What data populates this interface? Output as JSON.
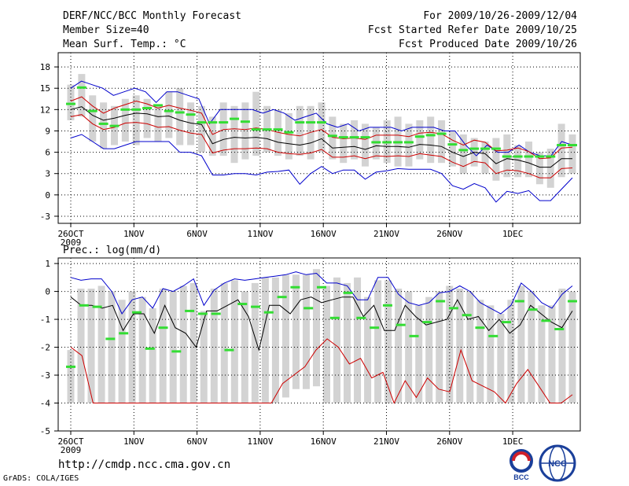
{
  "header": {
    "line1": "DERF/NCC/BCC Monthly Forecast",
    "line2": "Member Size=40",
    "line3": "Mean Surf. Temp.: °C",
    "right1": "For 2009/10/26-2009/12/04",
    "right2": "Fcst Started Refer Date 2009/10/25",
    "right3": "Fcst Produced Date 2009/10/26"
  },
  "footer": {
    "url": "http://cmdp.ncc.cma.gov.cn",
    "grads": "GrADS: COLA/IGES",
    "bcc_logo": "BCC",
    "ncc_logo": "NCC"
  },
  "colors": {
    "grid": "#000000",
    "box": "#d3d3d3",
    "mean": "#000000",
    "inner": "#cc0000",
    "outer": "#0000cc",
    "marker": "#33dd33"
  },
  "chart_data": [
    {
      "type": "line",
      "title": "Mean Surf. Temp.: °C",
      "ylim": [
        -4,
        20
      ],
      "yticks": [
        -3,
        0,
        3,
        6,
        9,
        12,
        15,
        18
      ],
      "xtick_labels": [
        "26OCT",
        "1NOV",
        "6NOV",
        "11NOV",
        "16NOV",
        "21NOV",
        "26NOV",
        "1DEC"
      ],
      "xtick_sub": [
        "2009",
        "",
        "",
        "",
        "",
        "",
        "",
        ""
      ],
      "days": 40,
      "series": [
        {
          "name": "outer_max",
          "values": [
            15,
            16,
            15.5,
            15,
            14,
            14.5,
            15,
            14.5,
            13,
            14.5,
            14.5,
            14,
            13.5,
            10,
            12,
            12,
            12,
            12,
            11.5,
            12,
            11.5,
            10.5,
            11,
            11.5,
            10,
            9.5,
            10,
            9,
            9.5,
            9.5,
            9.5,
            9,
            9.5,
            9.5,
            9.5,
            9,
            9,
            7,
            5.5,
            7,
            6,
            6,
            7,
            6,
            5.5,
            5.5,
            7.5,
            7
          ]
        },
        {
          "name": "inner_max",
          "values": [
            13.2,
            13.8,
            12.5,
            11.5,
            12.2,
            12.7,
            13.2,
            12.8,
            12.2,
            12.6,
            12.2,
            11.9,
            11.5,
            8.5,
            9.2,
            9.3,
            9.2,
            9.4,
            9.2,
            8.8,
            8.5,
            8.3,
            8.8,
            9.2,
            8.1,
            7.9,
            8.0,
            7.8,
            8.4,
            8.4,
            8.4,
            8.2,
            8.7,
            8.8,
            8.6,
            7.7,
            7.0,
            7.7,
            7.4,
            6.2,
            6.3,
            6.6,
            6.1,
            5.1,
            5.2,
            6.6,
            6.7
          ]
        },
        {
          "name": "mean",
          "values": [
            12.0,
            12.4,
            11.2,
            10.5,
            10.8,
            11.2,
            11.5,
            11.4,
            11.0,
            11.1,
            10.5,
            10.1,
            9.9,
            7.2,
            7.8,
            8.1,
            8.0,
            8.1,
            7.9,
            7.4,
            7.2,
            7.0,
            7.3,
            7.9,
            6.6,
            6.7,
            6.8,
            6.4,
            6.9,
            6.8,
            6.8,
            6.7,
            7.1,
            7.0,
            6.8,
            6.0,
            5.4,
            6.0,
            5.8,
            4.4,
            5.1,
            4.9,
            4.5,
            3.9,
            3.9,
            5.1,
            5.1
          ]
        },
        {
          "name": "inner_min",
          "values": [
            11.0,
            11.3,
            10.0,
            9.2,
            9.5,
            10.1,
            10.2,
            10.0,
            9.5,
            9.6,
            9.1,
            8.7,
            8.5,
            5.9,
            6.3,
            6.5,
            6.5,
            6.6,
            6.5,
            6.0,
            5.8,
            5.7,
            5.9,
            6.4,
            5.3,
            5.3,
            5.5,
            5.1,
            5.5,
            5.4,
            5.5,
            5.4,
            5.8,
            5.6,
            5.4,
            4.6,
            4.0,
            4.7,
            4.5,
            3.0,
            3.5,
            3.4,
            3.0,
            2.4,
            2.4,
            3.7,
            3.8
          ]
        },
        {
          "name": "outer_min",
          "values": [
            8.0,
            8.5,
            7.5,
            6.5,
            6.5,
            7.0,
            7.5,
            7.5,
            7.5,
            7.5,
            6.0,
            6.0,
            5.5,
            2.8,
            2.8,
            3.0,
            3.0,
            2.8,
            3.2,
            3.3,
            3.5,
            1.5,
            3.0,
            4.0,
            3.0,
            3.5,
            3.5,
            2.2,
            3.2,
            3.4,
            3.7,
            3.6,
            3.6,
            3.6,
            3.0,
            1.3,
            0.8,
            1.6,
            1.0,
            -1.0,
            0.5,
            0.2,
            0.6,
            -0.8,
            -0.8,
            0.8,
            2.4
          ]
        },
        {
          "name": "box_top",
          "values": [
            15.5,
            17,
            14,
            13,
            12.5,
            13.5,
            14,
            13.5,
            12.5,
            14.5,
            15,
            13,
            12.5,
            11,
            13,
            12.5,
            13,
            14.5,
            12.5,
            12,
            11.5,
            12.5,
            12.5,
            13,
            11,
            10,
            10.5,
            10,
            9.5,
            10.5,
            11,
            10,
            10.5,
            11,
            10.5,
            9,
            8.5,
            8,
            7.5,
            8,
            8.5,
            7,
            7.5,
            6,
            6.5,
            10,
            8.5
          ]
        },
        {
          "name": "box_bottom",
          "values": [
            10.5,
            11,
            7.5,
            6.5,
            7,
            7.5,
            7,
            8,
            7.5,
            8,
            7,
            7,
            6,
            5.5,
            5.5,
            4.5,
            5,
            5.5,
            6,
            5.5,
            5,
            5.5,
            5,
            6,
            5,
            4.5,
            5,
            4,
            5,
            4.5,
            4,
            4,
            5,
            4.5,
            4.5,
            4,
            3,
            4,
            3,
            2,
            2.5,
            2.5,
            2.5,
            1.5,
            1,
            2.5,
            3
          ]
        },
        {
          "name": "markers",
          "values": [
            12.8,
            15.1,
            11.8,
            10,
            9.7,
            12,
            12,
            12.2,
            12.6,
            11.8,
            11.6,
            11.3,
            10.2,
            10.2,
            10.2,
            10.7,
            10.3,
            9.2,
            9.2,
            9.2,
            8.8,
            10.2,
            10.2,
            10.2,
            8.3,
            8.1,
            8.1,
            8.1,
            7.4,
            7.4,
            7.4,
            7.4,
            8.2,
            8.4,
            8.6,
            7.1,
            6.3,
            6.5,
            6.5,
            6.5,
            5.4,
            5.4,
            5.4,
            5.4,
            5.4,
            7.0,
            7.0
          ]
        }
      ]
    },
    {
      "type": "line",
      "title": "Prec.: log(mm/d)",
      "ylim": [
        -5,
        1.2
      ],
      "yticks": [
        -5,
        -4,
        -3,
        -2,
        -1,
        0,
        1
      ],
      "xtick_labels": [
        "26OCT",
        "1NOV",
        "6NOV",
        "11NOV",
        "16NOV",
        "21NOV",
        "26NOV",
        "1DEC"
      ],
      "xtick_sub": [
        "2009",
        "",
        "",
        "",
        "",
        "",
        "",
        ""
      ],
      "days": 40,
      "series": [
        {
          "name": "outer_max",
          "values": [
            0.5,
            0.4,
            0.45,
            0.45,
            0.0,
            -0.8,
            -0.3,
            -0.2,
            -0.6,
            0.1,
            0.0,
            0.2,
            0.45,
            -0.5,
            0.05,
            0.3,
            0.45,
            0.4,
            0.45,
            0.5,
            0.55,
            0.6,
            0.7,
            0.6,
            0.65,
            0.3,
            0.3,
            0.2,
            -0.3,
            -0.3,
            0.5,
            0.5,
            -0.1,
            -0.4,
            -0.5,
            -0.4,
            -0.05,
            0.0,
            0.2,
            0.0,
            -0.4,
            -0.6,
            -0.8,
            -0.5,
            0.3,
            0.0,
            -0.4,
            -0.6,
            -0.1,
            0.2
          ]
        },
        {
          "name": "mean",
          "values": [
            -0.2,
            -0.5,
            -0.5,
            -0.6,
            -0.5,
            -1.4,
            -0.8,
            -0.8,
            -1.5,
            -0.5,
            -1.3,
            -1.5,
            -2.0,
            -0.7,
            -0.7,
            -0.5,
            -0.3,
            -0.9,
            -2.1,
            -0.5,
            -0.5,
            -0.8,
            -0.3,
            -0.2,
            -0.4,
            -0.3,
            -0.2,
            -0.2,
            -0.9,
            -0.5,
            -1.4,
            -1.4,
            -0.5,
            -0.9,
            -1.2,
            -1.1,
            -1.0,
            -0.3,
            -1.0,
            -0.9,
            -1.4,
            -1.0,
            -1.5,
            -1.2,
            -0.5,
            -0.8,
            -1.1,
            -1.3,
            -0.7
          ]
        },
        {
          "name": "inner_min",
          "values": [
            -2.0,
            -2.3,
            -4.0,
            -4.0,
            -4.0,
            -4.0,
            -4.0,
            -4.0,
            -4.0,
            -4.0,
            -4.0,
            -4.0,
            -4.0,
            -4.0,
            -4.0,
            -4.0,
            -4.0,
            -4.0,
            -4.0,
            -3.3,
            -3.0,
            -2.7,
            -2.1,
            -1.7,
            -2.0,
            -2.6,
            -2.4,
            -3.1,
            -2.9,
            -4.0,
            -3.2,
            -3.8,
            -3.1,
            -3.5,
            -3.6,
            -2.1,
            -3.2,
            -3.4,
            -3.6,
            -4.0,
            -3.3,
            -2.8,
            -3.4,
            -4.0,
            -4.0,
            -3.7
          ]
        },
        {
          "name": "box_top",
          "values": [
            -2.1,
            0.1,
            0.1,
            0.2,
            0.0,
            -0.3,
            0.0,
            -0.2,
            -0.6,
            0.1,
            0.0,
            0.2,
            0.3,
            -0.7,
            0.1,
            0.3,
            0.4,
            0.0,
            0.3,
            0.5,
            0.5,
            0.6,
            0.6,
            0.6,
            0.8,
            0.2,
            0.5,
            0.3,
            0.5,
            -0.2,
            0.4,
            0.4,
            0.1,
            0.0,
            -0.5,
            -0.2,
            0.0,
            0.2,
            0.1,
            0.0,
            -0.3,
            -0.5,
            -0.8,
            -0.3,
            0.2,
            0.0,
            -0.5,
            -0.5,
            0.1,
            0.0
          ]
        },
        {
          "name": "box_bottom",
          "values": [
            -4.0,
            -4.0,
            -4.0,
            -4.0,
            -4.0,
            -4.0,
            -4.0,
            -4.0,
            -4.0,
            -4.0,
            -4.0,
            -4.0,
            -4.0,
            -4.0,
            -4.0,
            -4.0,
            -4.0,
            -4.0,
            -4.0,
            -4.0,
            -4.0,
            -3.8,
            -3.5,
            -3.5,
            -3.4,
            -4.0,
            -4.0,
            -4.0,
            -4.0,
            -4.0,
            -4.0,
            -4.0,
            -4.0,
            -4.0,
            -4.0,
            -4.0,
            -4.0,
            -4.0,
            -4.0,
            -4.0,
            -4.0,
            -4.0,
            -4.0,
            -4.0,
            -4.0,
            -4.0,
            -4.0,
            -4.0,
            -4.0,
            -4.0
          ]
        },
        {
          "name": "markers",
          "values": [
            -2.7,
            -0.5,
            -0.55,
            -1.7,
            -1.5,
            -0.75,
            -2.05,
            -1.3,
            -2.15,
            -0.7,
            -0.8,
            -0.8,
            -2.1,
            -0.45,
            -0.55,
            -0.75,
            -0.2,
            0.15,
            -0.6,
            0.15,
            -0.95,
            -0.05,
            -0.95,
            -1.3,
            -0.5,
            -1.2,
            -1.6,
            -1.1,
            -0.35,
            -0.6,
            -0.85,
            -1.3,
            -1.6,
            -1.1,
            -0.35,
            -0.65,
            -1.05,
            -1.35,
            -0.35
          ]
        }
      ]
    }
  ]
}
